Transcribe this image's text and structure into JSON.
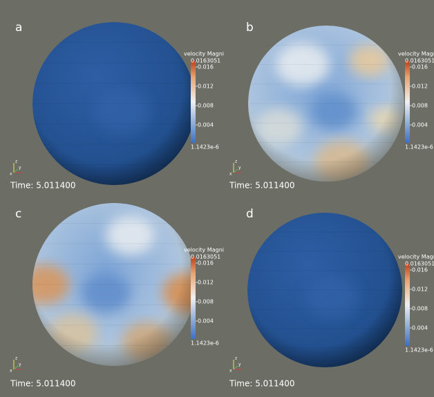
{
  "panels": [
    {
      "label": "a",
      "colorbar": {
        "title": "velocity Magni",
        "max": "0.0163051",
        "ticks": [
          "0.016",
          "0.012",
          "0.008",
          "0.004"
        ],
        "min": "1.1423e-6"
      },
      "axes": [
        "z",
        "y",
        "x"
      ],
      "time": "Time: 5.011400"
    },
    {
      "label": "b",
      "colorbar": {
        "title": "velocity Magni",
        "max": "0.0163051",
        "ticks": [
          "0.016",
          "0.012",
          "0.008",
          "0.004"
        ],
        "min": "1.1423e-6"
      },
      "axes": [
        "z",
        "y",
        "x"
      ],
      "time": "Time: 5.011400"
    },
    {
      "label": "c",
      "colorbar": {
        "title": "velocity Magni",
        "max": "0.0163051",
        "ticks": [
          "0.016",
          "0.012",
          "0.008",
          "0.004"
        ],
        "min": "1.1423e-6"
      },
      "axes": [
        "z",
        "y",
        "x"
      ],
      "time": "Time: 5.011400"
    },
    {
      "label": "d",
      "colorbar": {
        "title": "velocity Magni",
        "max": "0.0163051",
        "ticks": [
          "0.016",
          "0.012",
          "0.008",
          "0.004"
        ],
        "min": "1.1423e-6"
      },
      "axes": [
        "z",
        "y",
        "x"
      ],
      "time": "Time: 5.011400"
    }
  ]
}
